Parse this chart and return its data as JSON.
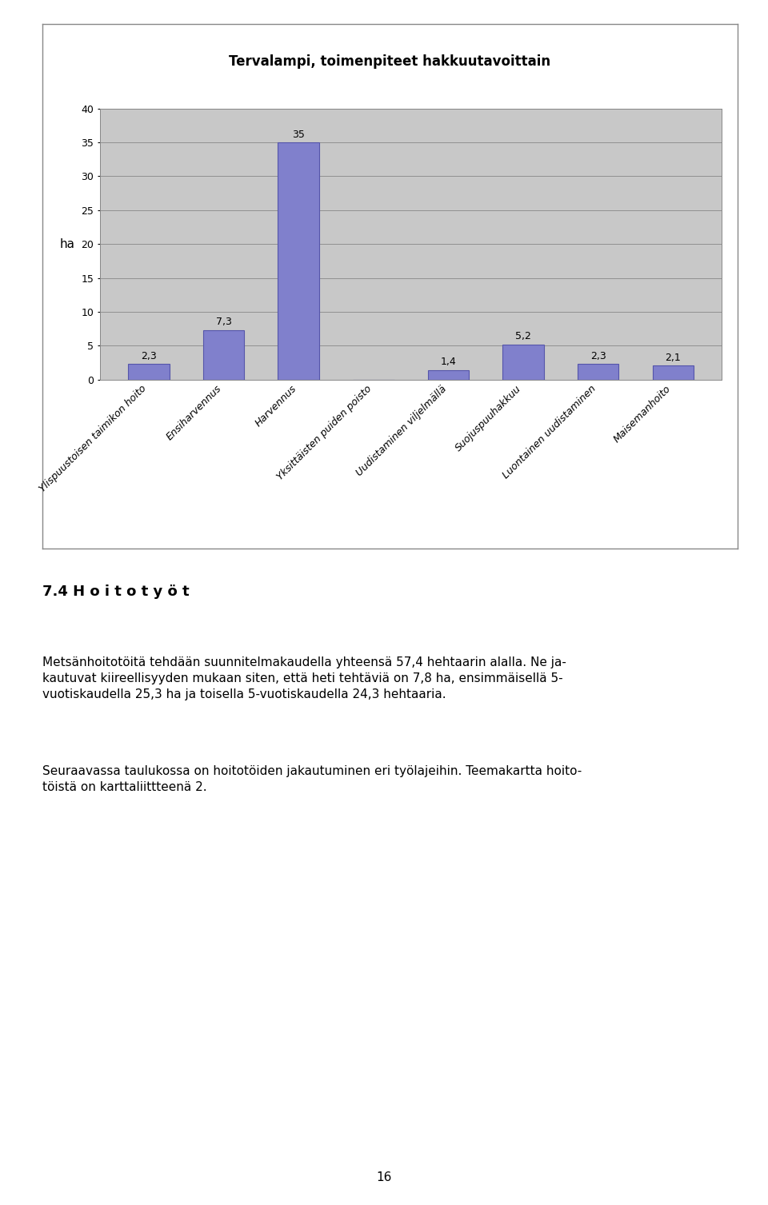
{
  "title": "Tervalampi, toimenpiteet hakkuutavoittain",
  "categories": [
    "Ylispuustoisen taimikon hoito",
    "Ensiharvennus",
    "Harvennus",
    "Yksittäisten puiden poisto",
    "Uudistaminen viljelmällä",
    "Suojuspuuhakkuu",
    "Luontainen uudistaminen",
    "Maisemanhoito"
  ],
  "values": [
    2.3,
    7.3,
    35.0,
    0.0,
    1.4,
    5.2,
    2.3,
    2.1
  ],
  "value_labels": [
    "2,3",
    "7,3",
    "35",
    "",
    "1,4",
    "5,2",
    "2,3",
    "2,1"
  ],
  "bar_color": "#8080cc",
  "bar_edge_color": "#5555aa",
  "ylabel": "ha",
  "ylim": [
    0,
    40
  ],
  "yticks": [
    0,
    5,
    10,
    15,
    20,
    25,
    30,
    35,
    40
  ],
  "plot_bg_color": "#c8c8c8",
  "outer_bg_color": "#ffffff",
  "box_bg_color": "#ffffff",
  "title_fontsize": 12,
  "axis_label_fontsize": 11,
  "tick_label_fontsize": 9,
  "value_label_fontsize": 9,
  "heading": "7.4 H o i t o t y ö t",
  "para1": "Metsänhoitotöitä tehdään suunnitelmakaudella yhteensä 57,4 hehtaarin alalla. Ne ja-\nkautuvat kiireellisyyden mukaan siten, että heti tehtäviä on 7,8 ha, ensimmäisellä 5-\nvuotiskaudella 25,3 ha ja toisella 5-vuotiskaudella 24,3 hehtaaria.",
  "para2": "Seuraavassa taulukossa on hoitotöiden jakautuminen eri työlajeihin. Teemakartta hoito-\ntöistä on karttaliittteenä 2.",
  "page_number": "16"
}
